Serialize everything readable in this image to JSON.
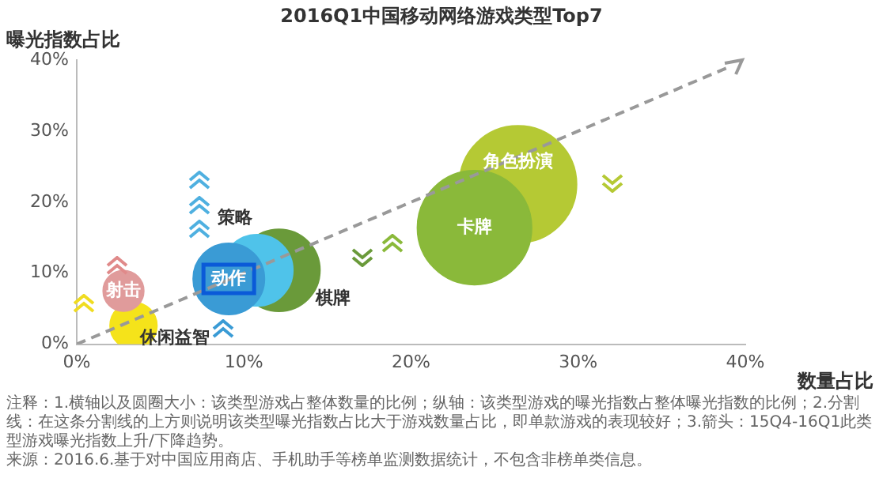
{
  "chart_data": {
    "type": "bubble",
    "title": "2016Q1中国移动网络游戏类型Top7",
    "xlabel": "数量占比",
    "ylabel": "曝光指数占比",
    "xlim": [
      0,
      40
    ],
    "ylim": [
      0,
      40
    ],
    "xticks": [
      {
        "value": 0,
        "label": "0%"
      },
      {
        "value": 10,
        "label": "10%"
      },
      {
        "value": 20,
        "label": "20%"
      },
      {
        "value": 30,
        "label": "30%"
      },
      {
        "value": 40,
        "label": "40%"
      }
    ],
    "yticks": [
      {
        "value": 0,
        "label": "0%"
      },
      {
        "value": 10,
        "label": "10%"
      },
      {
        "value": 20,
        "label": "20%"
      },
      {
        "value": 30,
        "label": "30%"
      },
      {
        "value": 40,
        "label": "40%"
      }
    ],
    "grid": false,
    "legend": false,
    "series": [
      {
        "name": "动作",
        "color": "#3a9bd5",
        "x": [
          9.1
        ],
        "values": [
          9.2
        ],
        "sizes": [
          0.37
        ]
      },
      {
        "name": "策略",
        "color": "#4fc3ea",
        "x": [
          10.8
        ],
        "values": [
          10.4
        ],
        "sizes": [
          0.37
        ]
      },
      {
        "name": "棋牌",
        "color": "#6a9a3a",
        "x": [
          12.1
        ],
        "values": [
          10.4
        ],
        "sizes": [
          0.49
        ]
      },
      {
        "name": "卡牌",
        "color": "#8ab93a",
        "x": [
          23.8
        ],
        "values": [
          16.4
        ],
        "sizes": [
          0.95
        ]
      },
      {
        "name": "角色扮演",
        "color": "#b5c934",
        "x": [
          26.4
        ],
        "values": [
          22.5
        ],
        "sizes": [
          1
        ]
      },
      {
        "name": "射击",
        "color": "#e09b9b",
        "x": [
          2.8
        ],
        "values": [
          7.5
        ],
        "sizes": [
          0.12
        ]
      },
      {
        "name": "休闲益智",
        "color": "#f5e31a",
        "x": [
          3.4
        ],
        "values": [
          2.6
        ],
        "sizes": [
          0.16
        ]
      },
      {
        "type": "line",
        "color": "#999999",
        "line_style": "dashed",
        "marker": "none",
        "x": [
          0,
          39
        ],
        "values": [
          0,
          39
        ]
      }
    ],
    "annotations": [
      "注释：1.横轴以及圆圈大小：该类型游戏占整体数量的比例；纵轴：该类型游戏的曝光指数占整体曝光指数的比例；2.分割线：在这条分割线的上方则说明该类型曝光指数占比大于游戏数量占比，即单款游戏的表现较好；3.箭头：15Q4-16Q1此类型游戏曝光指数上升/下降趋势。",
      "来源：2016.6.基于对中国应用商店、手机助手等榜单监测数据统计，不包含非榜单类信息。"
    ]
  }
}
